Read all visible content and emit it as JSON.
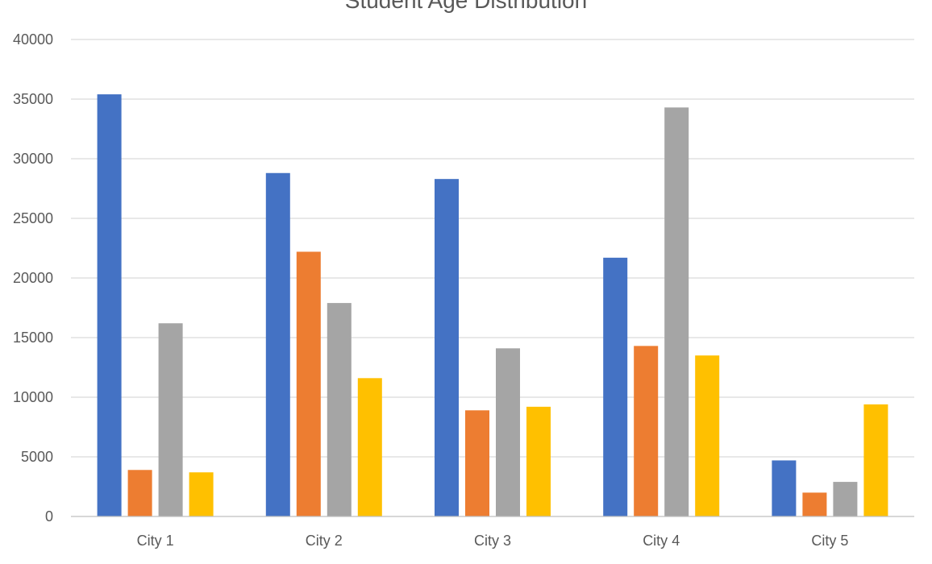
{
  "chart_data": {
    "type": "bar",
    "title": "Student Age Distribution",
    "categories": [
      "City 1",
      "City 2",
      "City 3",
      "City 4",
      "City 5"
    ],
    "series": [
      {
        "color": "#4472C4",
        "values": [
          35400,
          28800,
          28300,
          21700,
          4700
        ]
      },
      {
        "color": "#ED7D31",
        "values": [
          3900,
          22200,
          8900,
          14300,
          2000
        ]
      },
      {
        "color": "#A5A5A5",
        "values": [
          16200,
          17900,
          14100,
          34300,
          2900
        ]
      },
      {
        "color": "#FFC000",
        "values": [
          3700,
          11600,
          9200,
          13500,
          9400
        ]
      }
    ],
    "ylim": [
      0,
      40000
    ],
    "yticks": [
      0,
      5000,
      10000,
      15000,
      20000,
      25000,
      30000,
      35000,
      40000
    ],
    "grid": true,
    "legend": "none"
  }
}
